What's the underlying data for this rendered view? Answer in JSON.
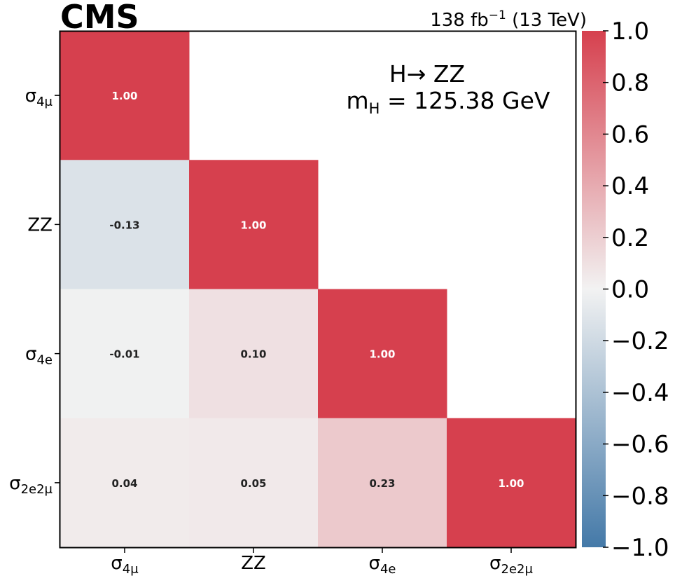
{
  "header": {
    "experiment": "CMS",
    "luminosity": "138 fb",
    "luminosity_exp": "−1",
    "energy": "(13 TeV)"
  },
  "annotation": {
    "process": "H→ ZZ",
    "mass_symbol": "m",
    "mass_subscript": "H",
    "mass_value": " = 125.38 GeV"
  },
  "colors": {
    "positive": "#d6404e",
    "neutral": "#f2f2f2",
    "negative": "#4479a8",
    "frame": "#000000"
  },
  "chart_data": {
    "type": "heatmap",
    "x_categories": [
      {
        "base": "σ",
        "sub": "4μ"
      },
      {
        "base": "ZZ",
        "sub": ""
      },
      {
        "base": "σ",
        "sub": "4e"
      },
      {
        "base": "σ",
        "sub": "2e2μ"
      }
    ],
    "y_categories": [
      {
        "base": "σ",
        "sub": "4μ"
      },
      {
        "base": "ZZ",
        "sub": ""
      },
      {
        "base": "σ",
        "sub": "4e"
      },
      {
        "base": "σ",
        "sub": "2e2μ"
      }
    ],
    "values": [
      [
        1.0,
        null,
        null,
        null
      ],
      [
        -0.13,
        1.0,
        null,
        null
      ],
      [
        -0.01,
        0.1,
        1.0,
        null
      ],
      [
        0.04,
        0.05,
        0.23,
        1.0
      ]
    ],
    "labels": [
      [
        "1.00",
        "",
        "",
        ""
      ],
      [
        "-0.13",
        "1.00",
        "",
        ""
      ],
      [
        "-0.01",
        "0.10",
        "1.00",
        ""
      ],
      [
        "0.04",
        "0.05",
        "0.23",
        "1.00"
      ]
    ],
    "colorbar": {
      "range": [
        -1.0,
        1.0
      ],
      "ticks": [
        "1.0",
        "0.8",
        "0.6",
        "0.4",
        "0.2",
        "0.0",
        "−0.2",
        "−0.4",
        "−0.6",
        "−0.8",
        "−1.0"
      ]
    }
  }
}
